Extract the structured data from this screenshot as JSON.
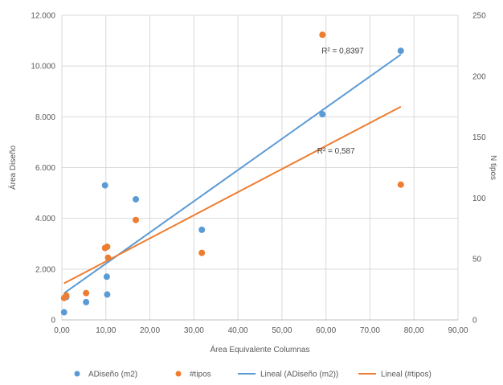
{
  "chart_data": {
    "type": "scatter",
    "xlabel": "Área Equivalente Columnas",
    "ylabel": "Área Diseño",
    "y2label": "N tipos",
    "xlim": [
      0,
      90
    ],
    "ylim": [
      0,
      12000
    ],
    "y2lim": [
      0,
      250
    ],
    "x_ticks": [
      0,
      10,
      20,
      30,
      40,
      50,
      60,
      70,
      80,
      90
    ],
    "x_tick_labels": [
      "0,00",
      "10,00",
      "20,00",
      "30,00",
      "40,00",
      "50,00",
      "60,00",
      "70,00",
      "80,00",
      "90,00"
    ],
    "y_ticks": [
      0,
      2000,
      4000,
      6000,
      8000,
      10000,
      12000
    ],
    "y_tick_labels": [
      "0",
      "2.000",
      "4.000",
      "6.000",
      "8.000",
      "10.000",
      "12.000"
    ],
    "y2_ticks": [
      0,
      50,
      100,
      150,
      200,
      250
    ],
    "y2_tick_labels": [
      "0",
      "50",
      "100",
      "150",
      "200",
      "250"
    ],
    "grid": true,
    "legend_position": "bottom",
    "series": [
      {
        "name": "ADiseño (m2)",
        "axis": "left",
        "color": "#5b9bd5",
        "points": [
          {
            "x": 0.5,
            "y": 300
          },
          {
            "x": 1.0,
            "y": 900
          },
          {
            "x": 5.5,
            "y": 700
          },
          {
            "x": 9.8,
            "y": 5300
          },
          {
            "x": 10.2,
            "y": 1700
          },
          {
            "x": 10.3,
            "y": 1000
          },
          {
            "x": 16.8,
            "y": 4750
          },
          {
            "x": 31.8,
            "y": 3550
          },
          {
            "x": 59.2,
            "y": 8100
          },
          {
            "x": 77.0,
            "y": 10600
          }
        ]
      },
      {
        "name": "#tipos",
        "axis": "right",
        "color": "#ed7d31",
        "points": [
          {
            "x": 0.5,
            "y": 18
          },
          {
            "x": 1.0,
            "y": 20
          },
          {
            "x": 5.5,
            "y": 22
          },
          {
            "x": 9.8,
            "y": 59
          },
          {
            "x": 10.3,
            "y": 60
          },
          {
            "x": 10.5,
            "y": 51
          },
          {
            "x": 16.8,
            "y": 82
          },
          {
            "x": 31.8,
            "y": 55
          },
          {
            "x": 59.2,
            "y": 234
          },
          {
            "x": 77.0,
            "y": 111
          }
        ]
      }
    ],
    "trendlines": [
      {
        "name": "Lineal (ADiseño (m2))",
        "axis": "left",
        "color": "#5b9bd5",
        "from": {
          "x": 0.5,
          "y": 1050
        },
        "to": {
          "x": 77.0,
          "y": 10450
        },
        "r2_label": "R² = 0,8397",
        "r2_anchor": {
          "x": 59.0,
          "y": 10500
        }
      },
      {
        "name": "Lineal (#tipos)",
        "axis": "right",
        "color": "#ed7d31",
        "from": {
          "x": 0.5,
          "y": 30
        },
        "to": {
          "x": 77.0,
          "y": 175
        },
        "r2_label": "R² = 0,587",
        "r2_anchor": {
          "x": 58.0,
          "y": 6550
        }
      }
    ]
  }
}
